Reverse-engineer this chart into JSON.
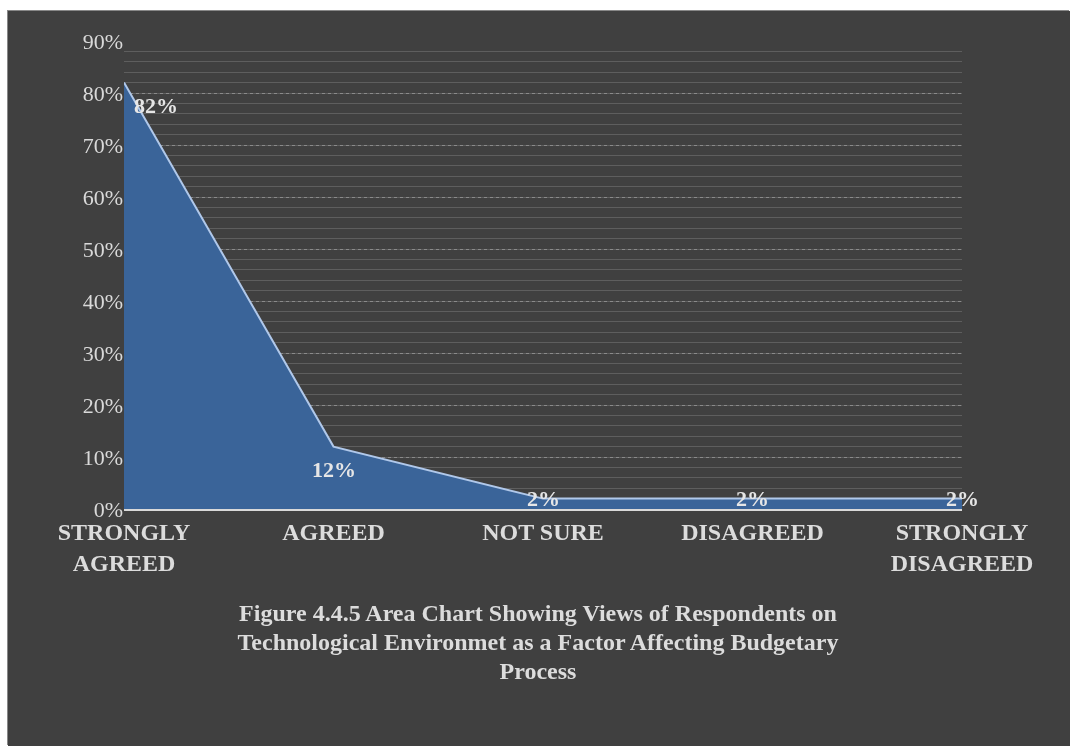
{
  "chart_data": {
    "type": "area",
    "title": "Figure 4.4.5 Area Chart Showing Views of Respondents on Technological Environmet as a Factor Affecting Budgetary Process",
    "categories": [
      "STRONGLY AGREED",
      "AGREED",
      "NOT SURE",
      "DISAGREED",
      "STRONGLY DISAGREED"
    ],
    "values": [
      82,
      12,
      2,
      2,
      2
    ],
    "color": "#3a6499",
    "value_labels": [
      "82%",
      "12%",
      "2%",
      "2%",
      "2%"
    ],
    "ylim": [
      0,
      90
    ],
    "yticks": [
      {
        "value": 0,
        "label": "0%"
      },
      {
        "value": 10,
        "label": "10%"
      },
      {
        "value": 20,
        "label": "20%"
      },
      {
        "value": 30,
        "label": "30%"
      },
      {
        "value": 40,
        "label": "40%"
      },
      {
        "value": 50,
        "label": "50%"
      },
      {
        "value": 60,
        "label": "60%"
      },
      {
        "value": 70,
        "label": "70%"
      },
      {
        "value": 80,
        "label": "80%"
      },
      {
        "value": 90,
        "label": "90%"
      }
    ],
    "grid": "y",
    "legend": false
  }
}
